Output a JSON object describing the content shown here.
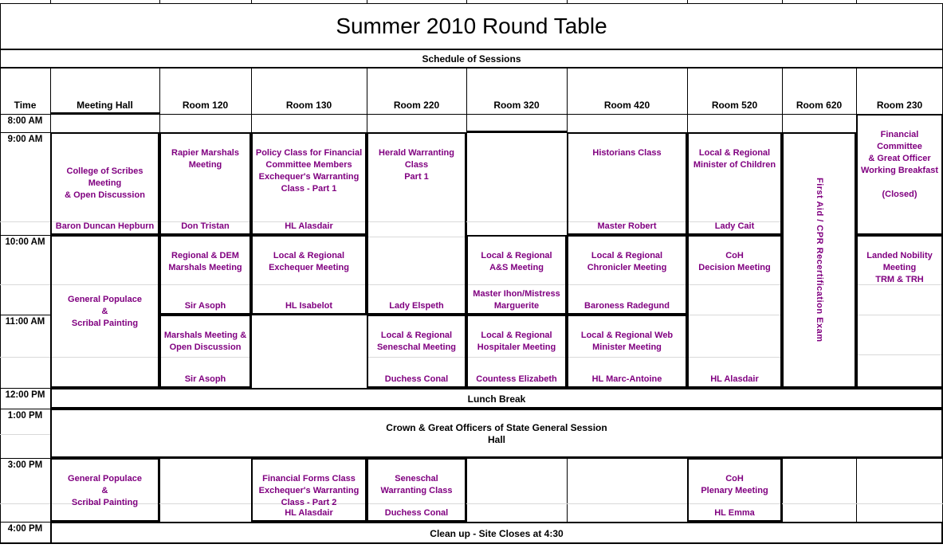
{
  "title": "Summer 2010 Round Table",
  "subtitle": "Schedule of Sessions",
  "columns": [
    "Time",
    "Meeting Hall",
    "Room 120",
    "Room 130",
    "Room 220",
    "Room 320",
    "Room 420",
    "Room 520",
    "Room 620",
    "Room 230"
  ],
  "times": [
    "8:00 AM",
    "9:00 AM",
    "10:00 AM",
    "11:00 AM",
    "12:00 PM",
    "1:00 PM",
    "3:00 PM",
    "4:00 PM"
  ],
  "colors": {
    "session_text": "#800080",
    "grid": "#000000",
    "faint_gridline": "#d9d9d9"
  },
  "sessions": {
    "hall9": {
      "title": "College of Scribes\nMeeting\n& Open Discussion",
      "presenter": "Baron Duncan Hepburn"
    },
    "r120_9": {
      "title": "Rapier Marshals\nMeeting",
      "presenter": "Don Tristan"
    },
    "r130_9": {
      "title": "Policy Class for Financial\nCommittee Members\nExchequer's Warranting\nClass - Part 1",
      "presenter": "HL Alasdair"
    },
    "r220_9": {
      "title": "Herald Warranting\nClass\nPart 1",
      "presenter": "Lady Elspeth"
    },
    "r420_9": {
      "title": "Historians Class",
      "presenter": "Master Robert"
    },
    "r520_9": {
      "title": "Local & Regional\nMinister of Children",
      "presenter": "Lady Cait"
    },
    "r620_9": {
      "title": "First Aid / CPR Recertification Exam"
    },
    "r230_8": {
      "title": "Financial\nCommittee\n& Great Officer\nWorking Breakfast\n\n(Closed)"
    },
    "hall10": {
      "title": "General Populace\n&\nScribal Painting"
    },
    "r120_10": {
      "title": "Regional & DEM\nMarshals Meeting",
      "presenter": "Sir Asoph"
    },
    "r130_10": {
      "title": "Local & Regional\nExchequer Meeting",
      "presenter": "HL Isabelot"
    },
    "r320_10": {
      "title": "Local & Regional\nA&S Meeting",
      "presenter": "Master Ihon/Mistress\nMarguerite"
    },
    "r420_10": {
      "title": "Local & Regional\nChronicler Meeting",
      "presenter": "Baroness Radegund"
    },
    "r520_10": {
      "title": "CoH\nDecision Meeting",
      "presenter": "HL Alasdair"
    },
    "r230_10": {
      "title": "Landed Nobility\nMeeting\nTRM & TRH"
    },
    "r120_11": {
      "title": "Marshals Meeting &\nOpen Discussion",
      "presenter": "Sir Asoph"
    },
    "r220_11": {
      "title": "Local & Regional\nSeneschal Meeting",
      "presenter": "Duchess Conal"
    },
    "r320_11": {
      "title": "Local & Regional\nHospitaler Meeting",
      "presenter": "Countess Elizabeth"
    },
    "r420_11": {
      "title": "Local & Regional Web\nMinister Meeting",
      "presenter": "HL Marc-Antoine"
    },
    "lunch": {
      "title": "Lunch Break"
    },
    "crown": {
      "title": "Crown & Great Officers of State General Session\nHall"
    },
    "hall3": {
      "title": "General Populace\n&\nScribal Painting"
    },
    "r130_3": {
      "title": "Financial Forms Class\nExchequer's Warranting\nClass - Part 2",
      "presenter": "HL Alasdair"
    },
    "r220_3": {
      "title": "Seneschal\nWarranting Class",
      "presenter": "Duchess Conal"
    },
    "r520_3": {
      "title": "CoH\nPlenary Meeting",
      "presenter": "HL Emma"
    },
    "cleanup": {
      "title": "Clean up - Site Closes at 4:30"
    }
  }
}
